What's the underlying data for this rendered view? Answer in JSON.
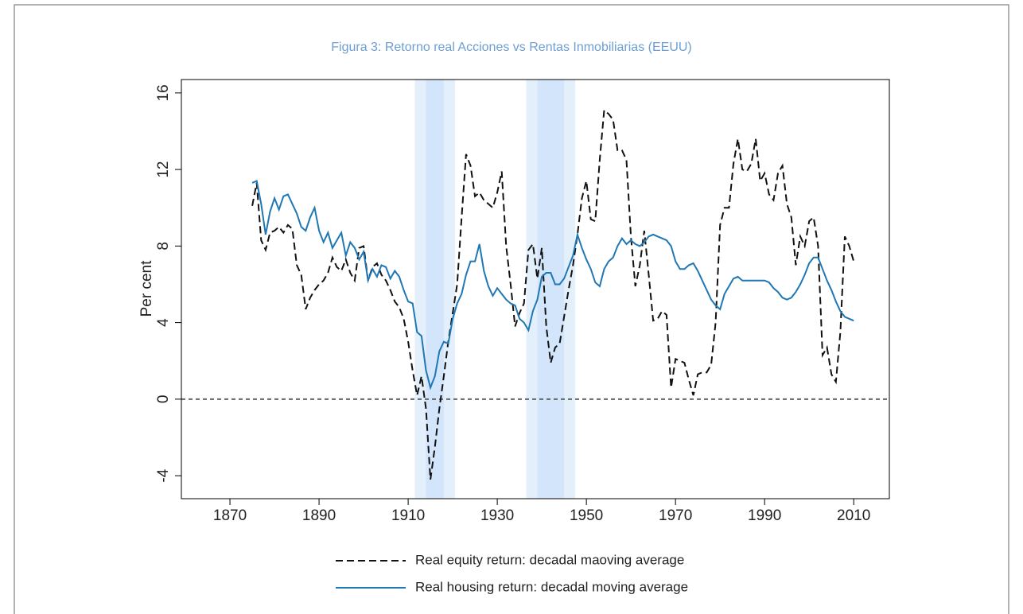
{
  "chart_data": {
    "type": "line",
    "title": "Figura 3: Retorno real Acciones vs Rentas Inmobiliarias (EEUU)",
    "y_label": "Per cent",
    "x": [
      1875,
      1876,
      1877,
      1878,
      1879,
      1880,
      1881,
      1882,
      1883,
      1884,
      1885,
      1886,
      1887,
      1888,
      1889,
      1890,
      1891,
      1892,
      1893,
      1894,
      1895,
      1896,
      1897,
      1898,
      1899,
      1900,
      1901,
      1902,
      1903,
      1904,
      1905,
      1906,
      1907,
      1908,
      1909,
      1910,
      1911,
      1912,
      1913,
      1914,
      1915,
      1916,
      1917,
      1918,
      1919,
      1920,
      1921,
      1922,
      1923,
      1924,
      1925,
      1926,
      1927,
      1928,
      1929,
      1930,
      1931,
      1932,
      1933,
      1934,
      1935,
      1936,
      1937,
      1938,
      1939,
      1940,
      1941,
      1942,
      1943,
      1944,
      1945,
      1946,
      1947,
      1948,
      1949,
      1950,
      1951,
      1952,
      1953,
      1954,
      1955,
      1956,
      1957,
      1958,
      1959,
      1960,
      1961,
      1962,
      1963,
      1964,
      1965,
      1966,
      1967,
      1968,
      1969,
      1970,
      1971,
      1972,
      1973,
      1974,
      1975,
      1976,
      1977,
      1978,
      1979,
      1980,
      1981,
      1982,
      1983,
      1984,
      1985,
      1986,
      1987,
      1988,
      1989,
      1990,
      1991,
      1992,
      1993,
      1994,
      1995,
      1996,
      1997,
      1998,
      1999,
      2000,
      2001,
      2002,
      2003,
      2004,
      2005,
      2006,
      2007,
      2008,
      2009,
      2010
    ],
    "series": [
      {
        "name": "Real equity return: decadal maoving average",
        "color": "#111111",
        "dashed": true,
        "values": [
          10.1,
          11.3,
          8.3,
          7.8,
          8.7,
          8.8,
          9.0,
          8.7,
          9.1,
          8.9,
          7.0,
          6.5,
          4.7,
          5.3,
          5.7,
          6.0,
          6.2,
          6.6,
          7.4,
          6.9,
          6.7,
          7.3,
          6.6,
          6.2,
          7.9,
          8.0,
          6.2,
          6.9,
          7.1,
          6.5,
          6.2,
          5.7,
          5.1,
          4.8,
          4.2,
          3.0,
          1.5,
          0.2,
          1.2,
          -0.5,
          -4.2,
          -2.5,
          -0.5,
          1.2,
          3.0,
          4.5,
          6.0,
          9.5,
          12.8,
          12.2,
          10.6,
          10.8,
          10.4,
          10.2,
          10.0,
          10.8,
          11.9,
          8.0,
          6.0,
          3.8,
          4.5,
          5.0,
          7.8,
          8.1,
          6.3,
          7.9,
          3.8,
          1.9,
          2.7,
          2.9,
          4.3,
          5.7,
          7.0,
          8.6,
          10.5,
          11.4,
          9.4,
          9.3,
          12.5,
          15.1,
          14.9,
          14.6,
          13.0,
          13.0,
          12.5,
          8.5,
          5.9,
          7.0,
          8.8,
          6.5,
          4.1,
          4.2,
          4.6,
          4.4,
          0.6,
          2.1,
          2.0,
          1.9,
          1.0,
          0.2,
          1.3,
          1.4,
          1.4,
          1.8,
          4.0,
          9.1,
          10.0,
          10.0,
          12.3,
          13.6,
          12.0,
          11.9,
          12.3,
          13.6,
          11.4,
          11.8,
          10.7,
          10.4,
          11.8,
          12.2,
          10.2,
          9.5,
          7.0,
          8.5,
          8.0,
          9.3,
          9.5,
          8.0,
          2.3,
          2.7,
          1.3,
          0.9,
          3.5,
          8.5,
          8.0,
          7.2
        ]
      },
      {
        "name": "Real housing return: decadal moving average",
        "color": "#1f77b4",
        "dashed": false,
        "values": [
          11.3,
          11.4,
          10.2,
          8.6,
          9.8,
          10.5,
          9.9,
          10.6,
          10.7,
          10.2,
          9.7,
          9.0,
          8.8,
          9.5,
          10.0,
          8.8,
          8.2,
          8.7,
          7.9,
          8.3,
          8.7,
          7.5,
          8.2,
          7.9,
          7.3,
          7.7,
          6.2,
          6.8,
          6.4,
          7.0,
          6.9,
          6.3,
          6.7,
          6.4,
          5.7,
          5.1,
          5.0,
          3.5,
          3.3,
          1.5,
          0.6,
          1.2,
          2.5,
          3.0,
          2.9,
          4.2,
          5.0,
          5.5,
          6.5,
          7.2,
          7.2,
          8.1,
          6.7,
          5.9,
          5.4,
          5.8,
          5.5,
          5.2,
          5.0,
          4.9,
          4.2,
          4.0,
          3.6,
          4.6,
          5.2,
          6.4,
          6.6,
          6.6,
          6.0,
          6.0,
          6.3,
          6.9,
          7.5,
          8.6,
          7.9,
          7.3,
          6.8,
          6.1,
          5.9,
          6.8,
          7.2,
          7.4,
          8.0,
          8.4,
          8.1,
          8.3,
          8.1,
          8.0,
          8.2,
          8.5,
          8.6,
          8.5,
          8.4,
          8.3,
          8.0,
          7.2,
          6.8,
          6.8,
          7.0,
          7.1,
          6.7,
          6.2,
          5.7,
          5.2,
          4.9,
          4.7,
          5.5,
          5.9,
          6.3,
          6.4,
          6.2,
          6.2,
          6.2,
          6.2,
          6.2,
          6.2,
          6.1,
          5.8,
          5.6,
          5.3,
          5.2,
          5.3,
          5.6,
          6.0,
          6.5,
          7.1,
          7.4,
          7.4,
          6.8,
          6.2,
          5.7,
          5.1,
          4.6,
          4.3,
          4.2,
          4.1
        ]
      }
    ],
    "xlim": [
      1859.1,
      2018
    ],
    "ylim": [
      -5.2,
      16.7
    ],
    "xticks": [
      1870,
      1890,
      1910,
      1930,
      1950,
      1970,
      1990,
      2010
    ],
    "yticks": [
      -4,
      0,
      4,
      8,
      12,
      16
    ],
    "hline": 0,
    "shaded_regions": [
      [
        1914,
        1918
      ],
      [
        1939,
        1945
      ]
    ],
    "legend": "bottom"
  }
}
